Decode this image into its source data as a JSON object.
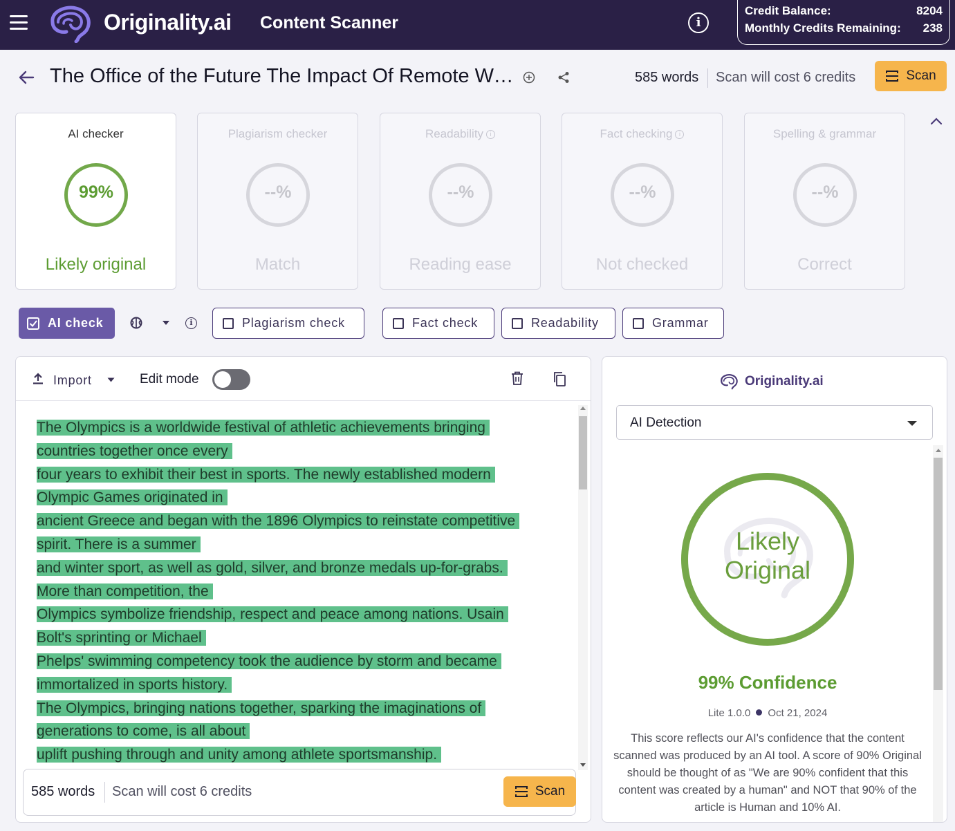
{
  "header": {
    "brand": "Originality.ai",
    "product": "Content Scanner",
    "credit_balance_label": "Credit Balance:",
    "credit_balance_value": "8204",
    "monthly_label": "Monthly Credits Remaining:",
    "monthly_value": "238"
  },
  "document": {
    "title": "The Office of the Future The Impact Of Remote Work",
    "word_count": "585 words",
    "scan_cost": "Scan will cost 6 credits",
    "scan_label": "Scan"
  },
  "cards": [
    {
      "title": "AI checker",
      "value": "99%",
      "label": "Likely original",
      "active": true
    },
    {
      "title": "Plagiarism checker",
      "value": "--%",
      "label": "Match",
      "active": false
    },
    {
      "title": "Readability",
      "value": "--%",
      "label": "Reading ease",
      "active": false
    },
    {
      "title": "Fact checking",
      "value": "--%",
      "label": "Not checked",
      "active": false
    },
    {
      "title": "Spelling & grammar",
      "value": "--%",
      "label": "Correct",
      "active": false
    }
  ],
  "options": {
    "ai_check": "AI check",
    "plagiarism": "Plagiarism check",
    "fact": "Fact check",
    "readability": "Readability",
    "grammar": "Grammar"
  },
  "editor": {
    "import_label": "Import",
    "edit_mode_label": "Edit mode",
    "edit_mode_on": false,
    "lines": [
      "The Olympics is a worldwide festival of athletic achievements bringing",
      "countries together once every",
      "four years to exhibit their best in sports. The newly established modern",
      "Olympic Games originated in",
      "ancient Greece and began with the 1896 Olympics to reinstate competitive",
      "spirit. There is a summer",
      "and winter sport, as well as gold, silver, and bronze medals up-for-grabs.",
      "More than competition, the",
      "Olympics symbolize friendship, respect and peace among nations. Usain",
      "Bolt's sprinting or Michael",
      "Phelps' swimming competency took the audience by storm and became",
      "immortalized in sports history.",
      "The Olympics, bringing nations together, sparking the imaginations of",
      "generations to come, is all about",
      "uplift pushing through and unity among athlete sportsmanship."
    ],
    "footer_word_count": "585 words",
    "footer_cost": "Scan will cost 6 credits",
    "footer_scan": "Scan"
  },
  "result": {
    "brand": "Originality.ai",
    "detection_select": "AI Detection",
    "ring_line1": "Likely",
    "ring_line2": "Original",
    "confidence": "99% Confidence",
    "model": "Lite 1.0.0",
    "date": "Oct 21, 2024",
    "description": "This score reflects our AI's confidence that the content scanned was produced by an AI tool. A score of 90% Original should be thought of as \"We are 90% confident that this content was created by a human\" and NOT that 90% of the article is Human and 10% AI."
  },
  "colors": {
    "topbar": "#2a2046",
    "accent": "#6a5aa7",
    "success": "#5c9c32",
    "highlight": "#5fc08b",
    "scan_button": "#f6b54c"
  }
}
